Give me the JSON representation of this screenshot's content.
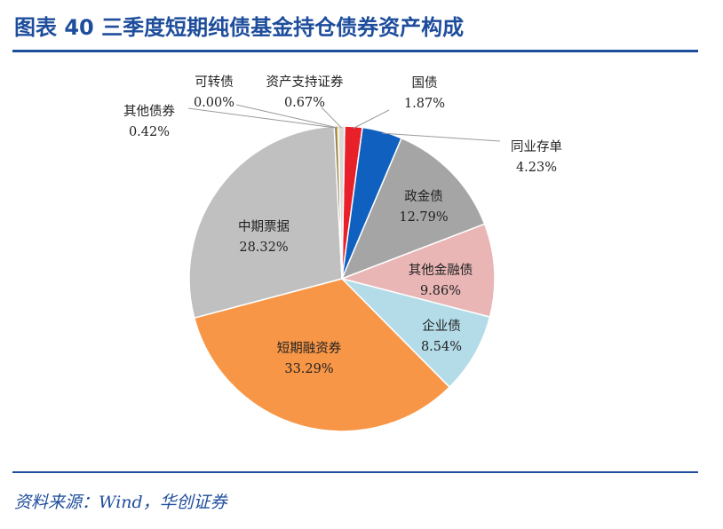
{
  "figure": {
    "title": "图表 40  三季度短期纯债基金持仓债券资产构成",
    "source": "资料来源：Wind，华创证券"
  },
  "chart_data": {
    "type": "pie",
    "title": "",
    "slices": [
      {
        "name": "国债",
        "value": 1.87,
        "label": "1.87%",
        "color": "#e8202a"
      },
      {
        "name": "同业存单",
        "value": 4.23,
        "label": "4.23%",
        "color": "#1060c0"
      },
      {
        "name": "政金债",
        "value": 12.79,
        "label": "12.79%",
        "color": "#a5a5a5"
      },
      {
        "name": "其他金融债",
        "value": 9.86,
        "label": "9.86%",
        "color": "#e9b5b5"
      },
      {
        "name": "企业债",
        "value": 8.54,
        "label": "8.54%",
        "color": "#b4dce8"
      },
      {
        "name": "短期融资券",
        "value": 33.29,
        "label": "33.29%",
        "color": "#f79646"
      },
      {
        "name": "中期票据",
        "value": 28.32,
        "label": "28.32%",
        "color": "#c0c0c0"
      },
      {
        "name": "其他债券",
        "value": 0.42,
        "label": "0.42%",
        "color": "#7f7f7f"
      },
      {
        "name": "可转债",
        "value": 0.0,
        "label": "0.00%",
        "color": "#ffc000"
      },
      {
        "name": "资产支持证券",
        "value": 0.67,
        "label": "0.67%",
        "color": "#d9d9d9"
      }
    ],
    "legend": "none"
  }
}
